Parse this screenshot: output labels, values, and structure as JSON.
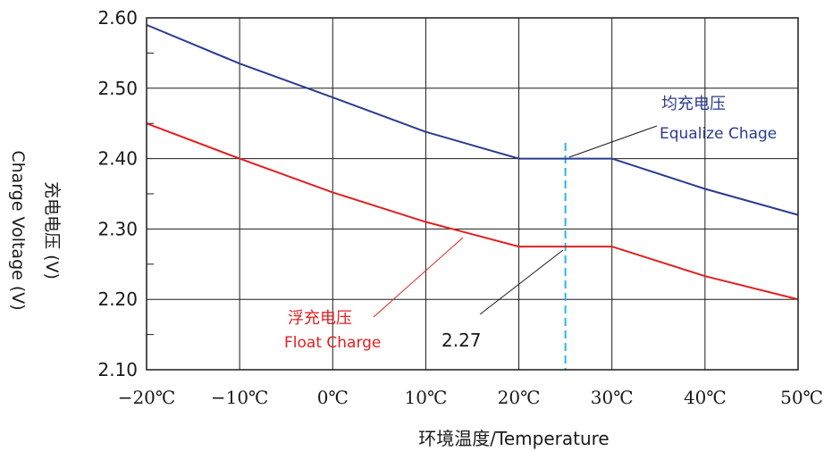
{
  "chart_data": {
    "type": "line",
    "x": [
      -20,
      -10,
      0,
      10,
      20,
      25,
      30,
      40,
      50
    ],
    "xtick_labels": [
      "−20℃",
      "−10℃",
      "0℃",
      "10℃",
      "20℃",
      "30℃",
      "40℃",
      "50℃"
    ],
    "xtick_values": [
      -20,
      -10,
      0,
      10,
      20,
      30,
      40,
      50
    ],
    "xlim": [
      -20,
      50
    ],
    "ylim": [
      2.1,
      2.6
    ],
    "ytick_labels": [
      "2.60",
      "2.50",
      "2.40",
      "2.30",
      "2.20",
      "2.10"
    ],
    "ytick_values": [
      2.6,
      2.5,
      2.4,
      2.3,
      2.2,
      2.1
    ],
    "ylabel_line1": "充电电压 (V)",
    "ylabel_line2": "Charge Voltage (V)",
    "xlabel": "环境温度/Temperature",
    "grid": true,
    "series": [
      {
        "name": "Equalize Chage",
        "name_zh": "均充电压",
        "color": "#2b3a8f",
        "points": [
          [
            -20,
            2.59
          ],
          [
            -10,
            2.535
          ],
          [
            0,
            2.487
          ],
          [
            10,
            2.438
          ],
          [
            20,
            2.4
          ],
          [
            30,
            2.4
          ],
          [
            40,
            2.357
          ],
          [
            50,
            2.32
          ]
        ]
      },
      {
        "name": "Float Charge",
        "name_zh": "浮充电压",
        "color": "#e02020",
        "points": [
          [
            -20,
            2.45
          ],
          [
            -10,
            2.4
          ],
          [
            0,
            2.352
          ],
          [
            10,
            2.31
          ],
          [
            20,
            2.275
          ],
          [
            30,
            2.275
          ],
          [
            40,
            2.233
          ],
          [
            50,
            2.2
          ]
        ]
      }
    ],
    "reference_line": {
      "x": 25,
      "color": "#29b6e8",
      "style": "dashed"
    },
    "annotations": {
      "value_label": "2.27",
      "equalize_zh": "均充电压",
      "equalize_en": "Equalize Chage",
      "float_zh": "浮充电压",
      "float_en": "Float Charge"
    }
  }
}
